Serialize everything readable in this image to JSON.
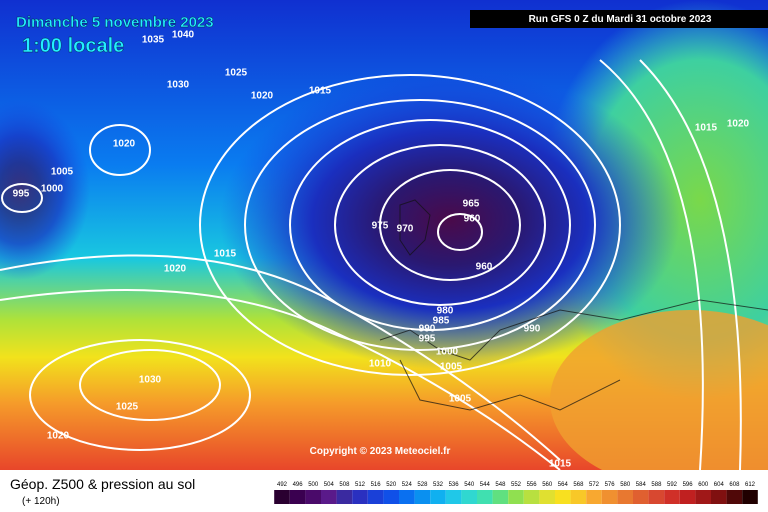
{
  "header": {
    "date": "Dimanche 5 novembre 2023",
    "local_time": "1:00 locale",
    "run": "Run GFS 0 Z du Mardi 31 octobre 2023"
  },
  "copyright": "Copyright © 2023 Meteociel.fr",
  "footer": {
    "title": "Géop. Z500 & pression au sol",
    "lead": "(+ 120h)"
  },
  "isobar_labels": [
    1035,
    1040,
    1025,
    1030,
    1020,
    1015,
    1020,
    1005,
    1000,
    995,
    975,
    970,
    965,
    960,
    960,
    1015,
    1020,
    980,
    985,
    990,
    995,
    1000,
    1005,
    1010,
    990,
    1005,
    1030,
    1025,
    1020,
    1015,
    1015,
    1020
  ],
  "colorbar": [
    492,
    496,
    500,
    504,
    508,
    512,
    516,
    520,
    524,
    528,
    532,
    536,
    540,
    544,
    548,
    552,
    556,
    560,
    564,
    568,
    572,
    576,
    580,
    584,
    588,
    592,
    596,
    600,
    604,
    608,
    612
  ]
}
